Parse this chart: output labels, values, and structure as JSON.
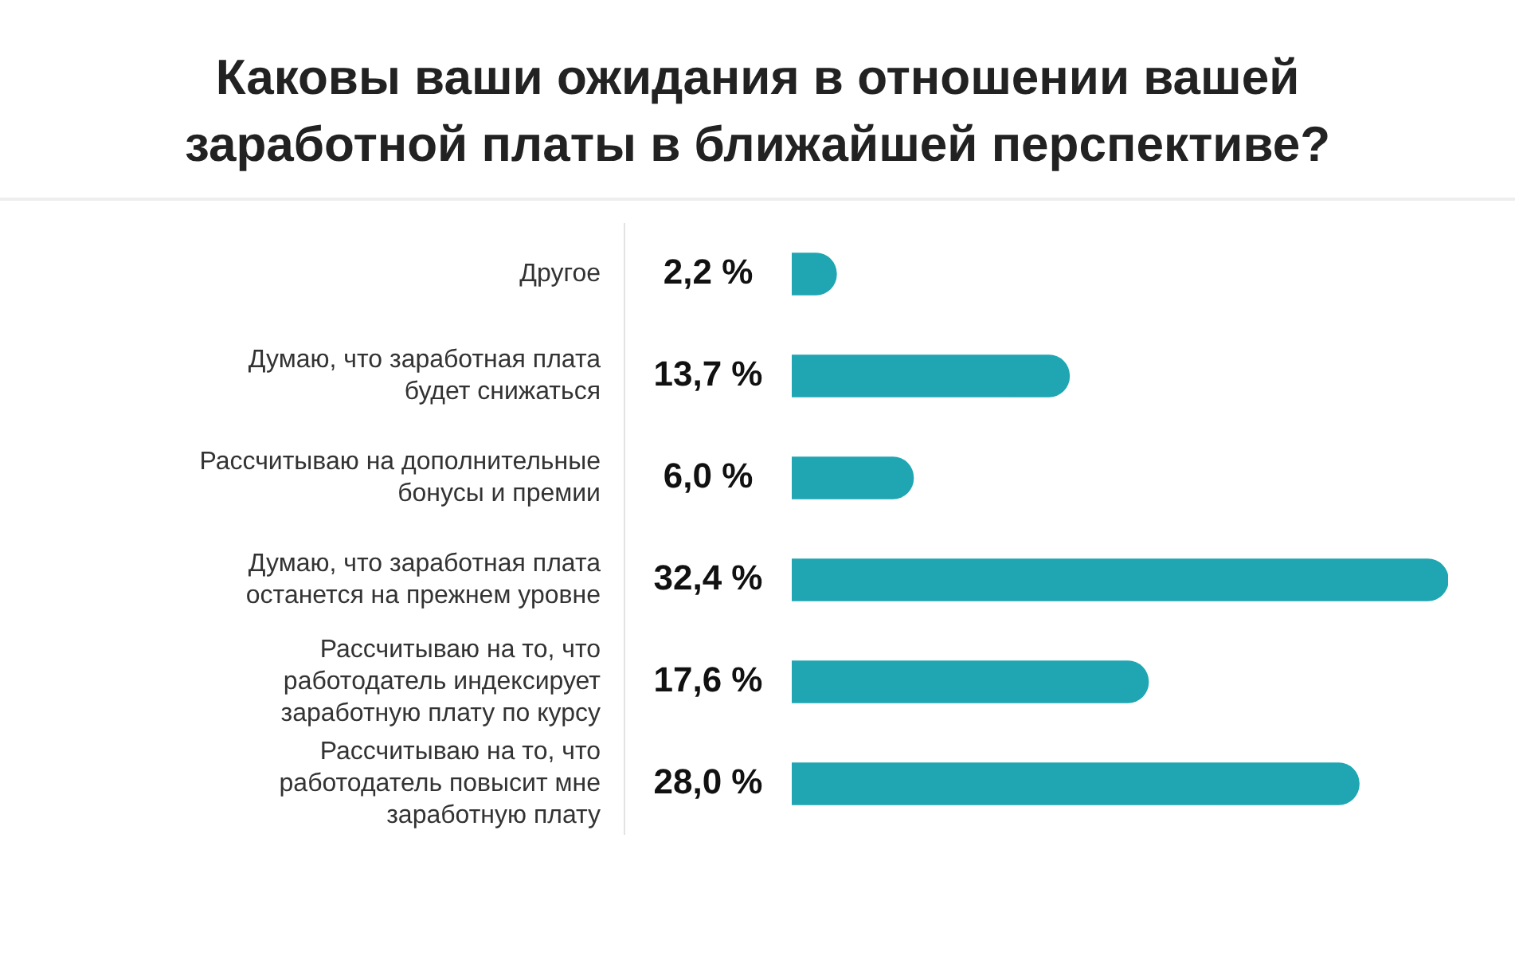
{
  "chart_data": {
    "type": "bar",
    "orientation": "horizontal",
    "title": "Каковы ваши ожидания в отношении вашей заработной платы в ближайшей перспективе?",
    "categories": [
      "Другое",
      "Думаю, что заработная плата будет снижаться",
      "Рассчитываю на дополнительные бонусы и премии",
      "Думаю, что заработная плата останется на прежнем уровне",
      "Рассчитываю на то, что работодатель индексирует заработную плату по курсу",
      "Рассчитываю на то, что работодатель повысит мне заработную плату"
    ],
    "values": [
      2.2,
      13.7,
      6.0,
      32.4,
      17.6,
      28.0
    ],
    "value_labels": [
      "2,2 %",
      "13,7 %",
      "6,0 %",
      "32,4 %",
      "17,6 %",
      "28,0 %"
    ],
    "color": "#1fa6b2",
    "legend": false
  }
}
